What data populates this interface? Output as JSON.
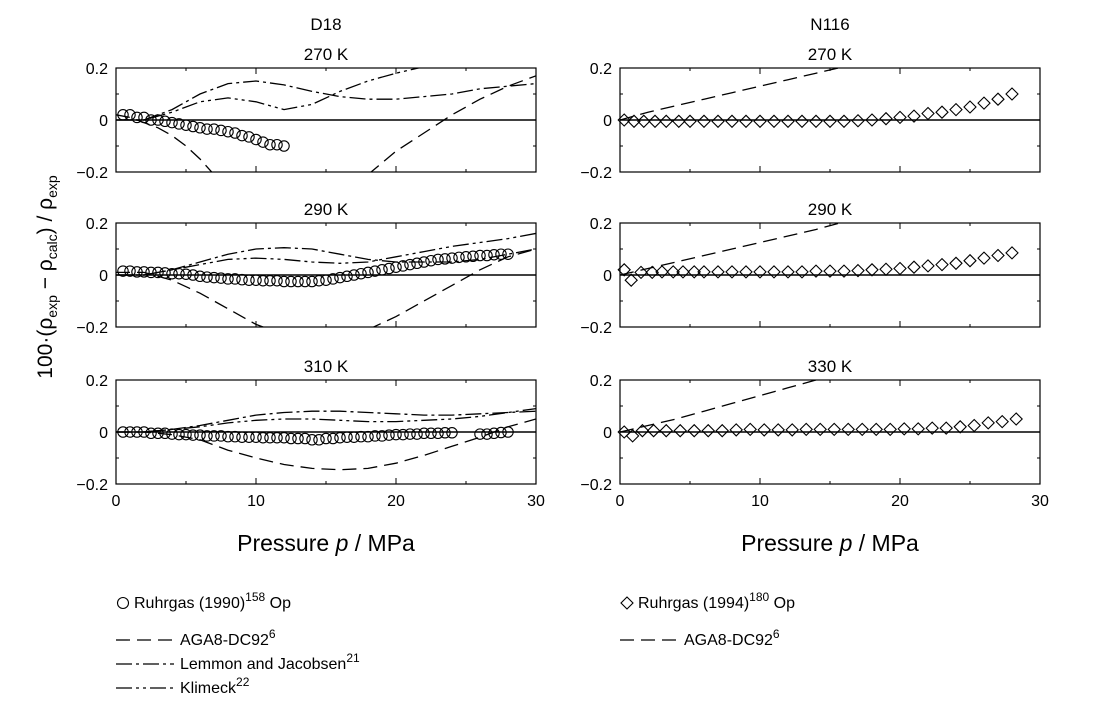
{
  "figure": {
    "ylabel": "100 · (ρexp − ρcalc) / ρexp",
    "xlabel": "Pressure p / MPa",
    "columns": [
      "D18",
      "N116"
    ]
  },
  "legend": {
    "left": [
      {
        "marker": "circle",
        "label": "Ruhrgas (1990)",
        "sup": "158",
        "suffix": "Op"
      },
      {
        "line": "dash",
        "label": "AGA8-DC92",
        "sup": "6"
      },
      {
        "line": "dashdot",
        "label": "Lemmon and Jacobsen",
        "sup": "21"
      },
      {
        "line": "dashdotdot",
        "label": "Klimeck",
        "sup": "22"
      }
    ],
    "right": [
      {
        "marker": "diamond",
        "label": "Ruhrgas (1994)",
        "sup": "180",
        "suffix": "Op"
      },
      {
        "line": "dash",
        "label": "AGA8-DC92",
        "sup": "6"
      }
    ]
  },
  "chart_data": [
    {
      "type": "scatter",
      "column": "D18",
      "title": "270 K",
      "xlim": [
        0,
        30
      ],
      "ylim": [
        -0.2,
        0.2
      ],
      "yticks": [
        "0.2",
        "0",
        "−0.2"
      ],
      "xticks": [],
      "points": {
        "marker": "circle",
        "x": [
          0.5,
          1.0,
          1.5,
          2.0,
          2.5,
          3.0,
          3.5,
          4.0,
          4.5,
          5.0,
          5.5,
          6.0,
          6.5,
          7.0,
          7.5,
          8.0,
          8.5,
          9.0,
          9.5,
          10.0,
          10.5,
          11.0,
          11.5,
          12.0
        ],
        "y": [
          0.02,
          0.02,
          0.01,
          0.01,
          0.0,
          0.0,
          -0.005,
          -0.01,
          -0.015,
          -0.02,
          -0.025,
          -0.03,
          -0.035,
          -0.035,
          -0.04,
          -0.045,
          -0.05,
          -0.06,
          -0.065,
          -0.075,
          -0.085,
          -0.095,
          -0.095,
          -0.1
        ]
      },
      "lines": [
        {
          "style": "dash",
          "x": [
            0,
            1,
            2,
            3,
            4,
            5,
            6,
            7
          ],
          "y": [
            0.02,
            0.01,
            -0.01,
            -0.03,
            -0.06,
            -0.1,
            -0.15,
            -0.21
          ]
        },
        {
          "style": "dash",
          "x": [
            18,
            20,
            22,
            24,
            26,
            28,
            30
          ],
          "y": [
            -0.21,
            -0.12,
            -0.05,
            0.02,
            0.08,
            0.13,
            0.17
          ]
        },
        {
          "style": "dashdot",
          "x": [
            0,
            2,
            4,
            6,
            8,
            10,
            12,
            14,
            16,
            18,
            20,
            22,
            24,
            26,
            28,
            30
          ],
          "y": [
            0.0,
            0.0,
            0.04,
            0.1,
            0.14,
            0.15,
            0.135,
            0.11,
            0.09,
            0.08,
            0.08,
            0.09,
            0.1,
            0.12,
            0.13,
            0.14
          ]
        },
        {
          "style": "dashdotdot",
          "x": [
            0,
            2,
            4,
            6,
            8,
            10,
            12,
            14,
            16,
            18,
            20,
            22
          ],
          "y": [
            0.0,
            0.0,
            0.03,
            0.07,
            0.085,
            0.07,
            0.04,
            0.06,
            0.11,
            0.15,
            0.18,
            0.205
          ]
        }
      ]
    },
    {
      "type": "scatter",
      "column": "D18",
      "title": "290 K",
      "xlim": [
        0,
        30
      ],
      "ylim": [
        -0.2,
        0.2
      ],
      "yticks": [
        "0.2",
        "0",
        "−0.2"
      ],
      "xticks": [],
      "points": {
        "marker": "circle",
        "x": [
          0.5,
          1.0,
          1.5,
          2.0,
          2.5,
          3.0,
          3.5,
          4.0,
          4.5,
          5.0,
          5.5,
          6.0,
          6.5,
          7.0,
          7.5,
          8.0,
          8.5,
          9.0,
          9.5,
          10.0,
          10.5,
          11.0,
          11.5,
          12.0,
          12.5,
          13.0,
          13.5,
          14.0,
          14.5,
          15.0,
          15.5,
          16.0,
          16.5,
          17.0,
          17.5,
          18.0,
          18.5,
          19.0,
          19.5,
          20.0,
          20.5,
          21.0,
          21.5,
          22.0,
          22.5,
          23.0,
          23.5,
          24.0,
          24.5,
          25.0,
          25.5,
          26.0,
          26.5,
          27.0,
          27.5,
          28.0
        ],
        "y": [
          0.015,
          0.015,
          0.012,
          0.012,
          0.01,
          0.01,
          0.008,
          0.005,
          0.005,
          0.003,
          0.0,
          -0.005,
          -0.008,
          -0.01,
          -0.012,
          -0.015,
          -0.015,
          -0.018,
          -0.02,
          -0.02,
          -0.022,
          -0.022,
          -0.022,
          -0.025,
          -0.025,
          -0.025,
          -0.025,
          -0.025,
          -0.022,
          -0.02,
          -0.015,
          -0.01,
          -0.005,
          0.0,
          0.005,
          0.01,
          0.015,
          0.02,
          0.025,
          0.03,
          0.035,
          0.04,
          0.045,
          0.05,
          0.055,
          0.06,
          0.062,
          0.065,
          0.068,
          0.07,
          0.072,
          0.075,
          0.075,
          0.078,
          0.08,
          0.08
        ]
      },
      "lines": [
        {
          "style": "dash",
          "x": [
            0,
            2,
            4,
            6,
            8,
            10,
            11
          ],
          "y": [
            0.01,
            0.01,
            -0.02,
            -0.07,
            -0.13,
            -0.19,
            -0.21
          ]
        },
        {
          "style": "dash",
          "x": [
            18,
            20,
            22,
            24,
            26,
            28,
            30
          ],
          "y": [
            -0.21,
            -0.16,
            -0.1,
            -0.04,
            0.02,
            0.07,
            0.1
          ]
        },
        {
          "style": "dashdot",
          "x": [
            0,
            2,
            4,
            6,
            8,
            10,
            12,
            14,
            16,
            18,
            20,
            22,
            24,
            26,
            28,
            30
          ],
          "y": [
            0.0,
            0.0,
            0.02,
            0.05,
            0.08,
            0.1,
            0.105,
            0.1,
            0.08,
            0.06,
            0.05,
            0.05,
            0.05,
            0.06,
            0.08,
            0.1
          ]
        },
        {
          "style": "dashdotdot",
          "x": [
            0,
            2,
            4,
            6,
            8,
            10,
            12,
            14,
            16,
            18,
            20,
            22,
            24,
            26,
            28,
            30
          ],
          "y": [
            0.0,
            0.0,
            0.02,
            0.04,
            0.06,
            0.065,
            0.06,
            0.05,
            0.045,
            0.05,
            0.07,
            0.09,
            0.11,
            0.125,
            0.14,
            0.16
          ]
        }
      ]
    },
    {
      "type": "scatter",
      "column": "D18",
      "title": "310 K",
      "xlim": [
        0,
        30
      ],
      "ylim": [
        -0.2,
        0.2
      ],
      "yticks": [
        "0.2",
        "0",
        "−0.2"
      ],
      "xticks": [
        "0",
        "10",
        "20",
        "30"
      ],
      "points": {
        "marker": "circle",
        "x": [
          0.5,
          1.0,
          1.5,
          2.0,
          2.5,
          3.0,
          3.5,
          4.0,
          4.5,
          5.0,
          5.5,
          6.0,
          6.5,
          7.0,
          7.5,
          8.0,
          8.5,
          9.0,
          9.5,
          10.0,
          10.5,
          11.0,
          11.5,
          12.0,
          12.5,
          13.0,
          13.5,
          14.0,
          14.5,
          15.0,
          15.5,
          16.0,
          16.5,
          17.0,
          17.5,
          18.0,
          18.5,
          19.0,
          19.5,
          20.0,
          20.5,
          21.0,
          21.5,
          22.0,
          22.5,
          23.0,
          23.5,
          24.0,
          26.0,
          26.5,
          27.0,
          27.5,
          28.0
        ],
        "y": [
          0.0,
          0.0,
          0.0,
          0.0,
          -0.005,
          -0.005,
          -0.005,
          -0.008,
          -0.01,
          -0.01,
          -0.012,
          -0.012,
          -0.015,
          -0.015,
          -0.015,
          -0.018,
          -0.018,
          -0.02,
          -0.02,
          -0.02,
          -0.022,
          -0.022,
          -0.022,
          -0.022,
          -0.025,
          -0.025,
          -0.025,
          -0.03,
          -0.03,
          -0.025,
          -0.025,
          -0.022,
          -0.02,
          -0.02,
          -0.018,
          -0.018,
          -0.015,
          -0.015,
          -0.012,
          -0.01,
          -0.01,
          -0.008,
          -0.008,
          -0.005,
          -0.005,
          -0.005,
          -0.003,
          -0.003,
          -0.008,
          -0.008,
          -0.005,
          -0.002,
          0.0
        ]
      },
      "lines": [
        {
          "style": "dash",
          "x": [
            0,
            2,
            4,
            6,
            8,
            10,
            12,
            14,
            16,
            18,
            20,
            22,
            24,
            26,
            28,
            30
          ],
          "y": [
            0.0,
            0.0,
            -0.01,
            -0.03,
            -0.07,
            -0.1,
            -0.125,
            -0.14,
            -0.145,
            -0.14,
            -0.12,
            -0.09,
            -0.055,
            -0.02,
            0.02,
            0.05
          ]
        },
        {
          "style": "dashdot",
          "x": [
            0,
            2,
            4,
            6,
            8,
            10,
            12,
            14,
            16,
            18,
            20,
            22,
            24,
            26,
            28,
            30
          ],
          "y": [
            0.0,
            0.0,
            0.01,
            0.025,
            0.045,
            0.065,
            0.075,
            0.08,
            0.08,
            0.075,
            0.07,
            0.065,
            0.065,
            0.07,
            0.075,
            0.08
          ]
        },
        {
          "style": "dashdotdot",
          "x": [
            0,
            2,
            4,
            6,
            8,
            10,
            12,
            14,
            16,
            18,
            20,
            22,
            24,
            26,
            28,
            30
          ],
          "y": [
            0.0,
            0.0,
            0.01,
            0.02,
            0.035,
            0.045,
            0.05,
            0.05,
            0.045,
            0.04,
            0.04,
            0.045,
            0.05,
            0.06,
            0.075,
            0.09
          ]
        }
      ]
    },
    {
      "type": "scatter",
      "column": "N116",
      "title": "270 K",
      "xlim": [
        0,
        30
      ],
      "ylim": [
        -0.2,
        0.2
      ],
      "yticks": [
        "0.2",
        "0",
        "−0.2"
      ],
      "xticks": [],
      "points": {
        "marker": "diamond",
        "x": [
          0.3,
          1.0,
          1.7,
          2.5,
          3.3,
          4.2,
          5.0,
          6.0,
          7.0,
          8.0,
          9.0,
          10.0,
          11.0,
          12.0,
          13.0,
          14.0,
          15.0,
          16.0,
          17.0,
          18.0,
          19.0,
          20.0,
          21.0,
          22.0,
          23.0,
          24.0,
          25.0,
          26.0,
          27.0,
          28.0
        ],
        "y": [
          0.0,
          -0.005,
          -0.005,
          -0.005,
          -0.005,
          -0.005,
          -0.005,
          -0.005,
          -0.005,
          -0.005,
          -0.005,
          -0.005,
          -0.005,
          -0.005,
          -0.005,
          -0.005,
          -0.005,
          -0.005,
          -0.003,
          0.0,
          0.005,
          0.01,
          0.015,
          0.025,
          0.03,
          0.04,
          0.05,
          0.065,
          0.08,
          0.1
        ]
      },
      "lines": [
        {
          "style": "dash",
          "x": [
            0,
            2,
            4,
            6,
            8,
            10,
            12,
            14,
            15.6
          ],
          "y": [
            0.0,
            0.03,
            0.055,
            0.08,
            0.105,
            0.13,
            0.155,
            0.18,
            0.2
          ]
        }
      ]
    },
    {
      "type": "scatter",
      "column": "N116",
      "title": "290 K",
      "xlim": [
        0,
        30
      ],
      "ylim": [
        -0.2,
        0.2
      ],
      "yticks": [
        "0.2",
        "0",
        "−0.2"
      ],
      "xticks": [],
      "points": {
        "marker": "diamond",
        "x": [
          0.3,
          0.8,
          1.5,
          2.3,
          3.0,
          3.8,
          4.5,
          5.3,
          6.0,
          7.0,
          8.0,
          9.0,
          10.0,
          11.0,
          12.0,
          13.0,
          14.0,
          15.0,
          16.0,
          17.0,
          18.0,
          19.0,
          20.0,
          21.0,
          22.0,
          23.0,
          24.0,
          25.0,
          26.0,
          27.0,
          28.0
        ],
        "y": [
          0.02,
          -0.02,
          0.01,
          0.01,
          0.012,
          0.012,
          0.012,
          0.012,
          0.012,
          0.012,
          0.012,
          0.012,
          0.012,
          0.012,
          0.012,
          0.012,
          0.015,
          0.015,
          0.015,
          0.017,
          0.02,
          0.022,
          0.025,
          0.03,
          0.035,
          0.04,
          0.045,
          0.055,
          0.065,
          0.075,
          0.085
        ]
      },
      "lines": [
        {
          "style": "dash",
          "x": [
            0,
            2,
            4,
            6,
            8,
            10,
            12,
            14,
            15.7
          ],
          "y": [
            0.0,
            0.025,
            0.05,
            0.075,
            0.1,
            0.125,
            0.15,
            0.175,
            0.2
          ]
        }
      ]
    },
    {
      "type": "scatter",
      "column": "N116",
      "title": "330 K",
      "xlim": [
        0,
        30
      ],
      "ylim": [
        -0.2,
        0.2
      ],
      "yticks": [
        "0.2",
        "0",
        "−0.2"
      ],
      "xticks": [
        "0",
        "10",
        "20",
        "30"
      ],
      "points": {
        "marker": "diamond",
        "x": [
          0.3,
          0.9,
          1.6,
          2.4,
          3.3,
          4.3,
          5.3,
          6.3,
          7.3,
          8.3,
          9.3,
          10.3,
          11.3,
          12.3,
          13.3,
          14.3,
          15.3,
          16.3,
          17.3,
          18.3,
          19.3,
          20.3,
          21.3,
          22.3,
          23.3,
          24.3,
          25.3,
          26.3,
          27.3,
          28.3
        ],
        "y": [
          0.0,
          -0.015,
          0.005,
          0.005,
          0.005,
          0.005,
          0.005,
          0.005,
          0.005,
          0.008,
          0.01,
          0.008,
          0.008,
          0.008,
          0.01,
          0.01,
          0.01,
          0.01,
          0.01,
          0.01,
          0.01,
          0.012,
          0.012,
          0.015,
          0.015,
          0.02,
          0.025,
          0.035,
          0.04,
          0.05
        ]
      },
      "lines": [
        {
          "style": "dash",
          "x": [
            0,
            2,
            4,
            6,
            8,
            10,
            12,
            14
          ],
          "y": [
            0.0,
            0.025,
            0.05,
            0.08,
            0.11,
            0.14,
            0.17,
            0.2
          ]
        }
      ]
    }
  ]
}
